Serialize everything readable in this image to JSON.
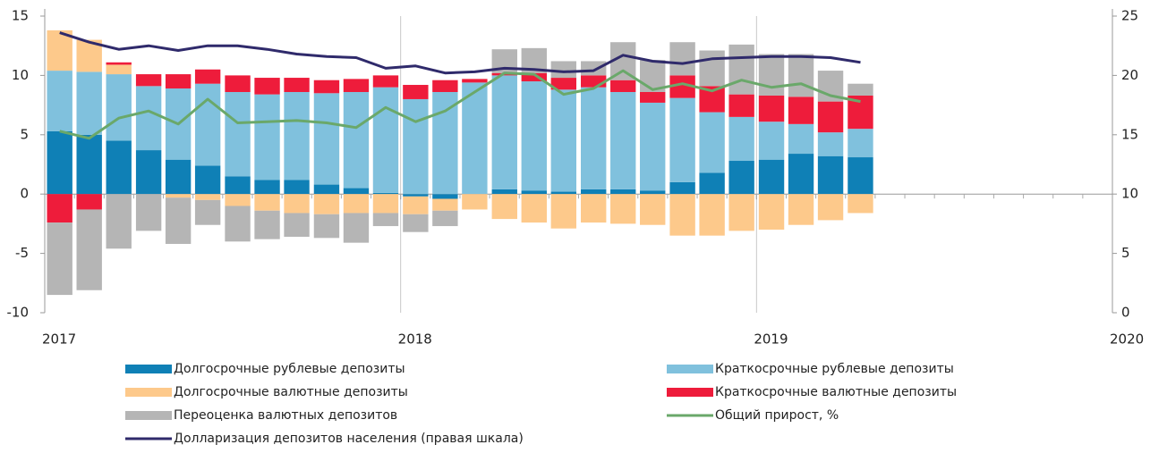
{
  "chart_data": {
    "type": "bar",
    "x": [
      2017.042,
      2017.125,
      2017.208,
      2017.292,
      2017.375,
      2017.458,
      2017.542,
      2017.625,
      2017.708,
      2017.792,
      2017.875,
      2017.958,
      2018.042,
      2018.125,
      2018.208,
      2018.292,
      2018.375,
      2018.458,
      2018.542,
      2018.625,
      2018.708,
      2018.792,
      2018.875,
      2018.958,
      2019.042,
      2019.125,
      2019.208,
      2019.292
    ],
    "xlim": [
      2017,
      2020
    ],
    "xticks": [
      2017,
      2018,
      2019,
      2020
    ],
    "ylim": [
      -10,
      15
    ],
    "yticks": [
      -10,
      -5,
      0,
      5,
      10,
      15
    ],
    "y2lim": [
      0,
      25
    ],
    "y2ticks": [
      0,
      5,
      10,
      15,
      20,
      25
    ],
    "grid": "x",
    "series": [
      {
        "name": "Долгосрочные рублевые депозиты",
        "color": "#0f80b6",
        "values": [
          5.3,
          5.0,
          4.5,
          3.7,
          2.9,
          2.4,
          1.5,
          1.2,
          1.2,
          0.8,
          0.5,
          0.1,
          -0.2,
          -0.4,
          0.0,
          0.4,
          0.3,
          0.2,
          0.4,
          0.4,
          0.3,
          1.0,
          1.8,
          2.8,
          2.9,
          3.4,
          3.2,
          3.1
        ]
      },
      {
        "name": "Краткосрочные рублевые депозиты",
        "color": "#80c1dd",
        "values": [
          5.1,
          5.3,
          5.6,
          5.4,
          6.0,
          6.9,
          7.1,
          7.2,
          7.4,
          7.7,
          8.1,
          8.9,
          8.0,
          8.6,
          9.4,
          9.6,
          9.2,
          8.6,
          8.6,
          8.2,
          7.4,
          7.1,
          5.1,
          3.7,
          3.2,
          2.5,
          2.0,
          2.4
        ]
      },
      {
        "name": "Долгосрочные валютные депозиты",
        "color": "#fdc98b",
        "values": [
          3.4,
          2.7,
          0.8,
          0.0,
          -0.3,
          -0.5,
          -1.0,
          -1.4,
          -1.6,
          -1.7,
          -1.6,
          -1.6,
          -1.5,
          -1.0,
          -1.3,
          -2.1,
          -2.4,
          -2.9,
          -2.4,
          -2.5,
          -2.6,
          -3.5,
          -3.5,
          -3.1,
          -3.0,
          -2.6,
          -2.2,
          -1.6
        ]
      },
      {
        "name": "Краткосрочные валютные депозиты",
        "color": "#ee1c3b",
        "values": [
          -2.4,
          -1.3,
          0.2,
          1.0,
          1.2,
          1.2,
          1.4,
          1.4,
          1.2,
          1.1,
          1.1,
          1.0,
          1.2,
          1.0,
          0.3,
          0.2,
          0.7,
          1.0,
          1.0,
          1.0,
          0.9,
          1.9,
          2.2,
          1.9,
          2.2,
          2.3,
          2.6,
          2.8
        ]
      },
      {
        "name": "Переоценка валютных депозитов",
        "color": "#b5b5b5",
        "values": [
          -6.1,
          -6.8,
          -4.6,
          -3.1,
          -3.9,
          -2.1,
          -3.0,
          -2.4,
          -2.0,
          -2.0,
          -2.5,
          -1.1,
          -1.5,
          -1.3,
          0.0,
          2.0,
          2.1,
          1.4,
          1.2,
          3.2,
          2.7,
          2.8,
          3.0,
          4.2,
          3.5,
          3.6,
          2.6,
          1.0
        ]
      },
      {
        "name": "Общий прирост, %",
        "color": "#6aa86a",
        "type": "line",
        "values": [
          5.3,
          4.7,
          6.4,
          7.0,
          5.9,
          8.0,
          6.0,
          6.1,
          6.2,
          6.0,
          5.6,
          7.3,
          6.1,
          7.0,
          8.6,
          10.2,
          10.1,
          8.4,
          8.9,
          10.4,
          8.8,
          9.3,
          8.7,
          9.6,
          9.0,
          9.3,
          8.3,
          7.8
        ]
      },
      {
        "name": "Долларизация депозитов населения (правая шкала)",
        "color": "#2f2a6b",
        "type": "line",
        "axis": "y2",
        "values": [
          23.6,
          22.8,
          22.2,
          22.5,
          22.1,
          22.5,
          22.5,
          22.2,
          21.8,
          21.6,
          21.5,
          20.6,
          20.8,
          20.2,
          20.3,
          20.6,
          20.5,
          20.3,
          20.4,
          21.7,
          21.2,
          21.0,
          21.4,
          21.5,
          21.6,
          21.6,
          21.5,
          21.1
        ]
      }
    ]
  }
}
